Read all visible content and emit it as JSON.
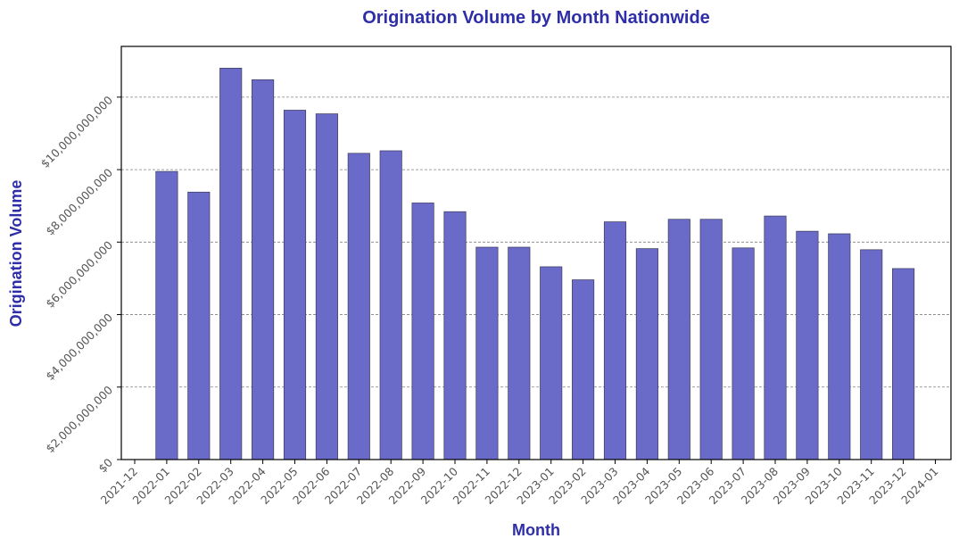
{
  "colors": {
    "title": "#2E2EA8",
    "bar_fill": "#6A6BC9",
    "bar_stroke": "#3a3a5a",
    "grid": "#808080",
    "axis": "#000000",
    "tick_text": "#555555"
  },
  "chart_data": {
    "type": "bar",
    "title": "Origination Volume by Month Nationwide",
    "xlabel": "Month",
    "ylabel": "Origination Volume",
    "ylim": [
      0,
      11400000000
    ],
    "grid": true,
    "grid_axis": "y",
    "grid_style": "dashed",
    "x_tick_labels": [
      "2021-12",
      "2022-01",
      "2022-02",
      "2022-03",
      "2022-04",
      "2022-05",
      "2022-06",
      "2022-07",
      "2022-08",
      "2022-09",
      "2022-10",
      "2022-11",
      "2022-12",
      "2023-01",
      "2023-02",
      "2023-03",
      "2023-04",
      "2023-05",
      "2023-06",
      "2023-07",
      "2023-08",
      "2023-09",
      "2023-10",
      "2023-11",
      "2023-12",
      "2024-01"
    ],
    "y_ticks": [
      {
        "value": 0,
        "label": "$0"
      },
      {
        "value": 2000000000,
        "label": "$2,000,000,000"
      },
      {
        "value": 4000000000,
        "label": "$4,000,000,000"
      },
      {
        "value": 6000000000,
        "label": "$6,000,000,000"
      },
      {
        "value": 8000000000,
        "label": "$8,000,000,000"
      },
      {
        "value": 10000000000,
        "label": "$10,000,000,000"
      }
    ],
    "categories": [
      "2022-01",
      "2022-02",
      "2022-03",
      "2022-04",
      "2022-05",
      "2022-06",
      "2022-07",
      "2022-08",
      "2022-09",
      "2022-10",
      "2022-11",
      "2022-12",
      "2023-01",
      "2023-02",
      "2023-03",
      "2023-04",
      "2023-05",
      "2023-06",
      "2023-07",
      "2023-08",
      "2023-09",
      "2023-10",
      "2023-11",
      "2023-12"
    ],
    "values": [
      7950000000,
      7380000000,
      10800000000,
      10480000000,
      9640000000,
      9540000000,
      8450000000,
      8520000000,
      7080000000,
      6840000000,
      5860000000,
      5860000000,
      5320000000,
      4960000000,
      6560000000,
      5820000000,
      6630000000,
      6630000000,
      5840000000,
      6720000000,
      6300000000,
      6230000000,
      5790000000,
      5270000000
    ]
  }
}
